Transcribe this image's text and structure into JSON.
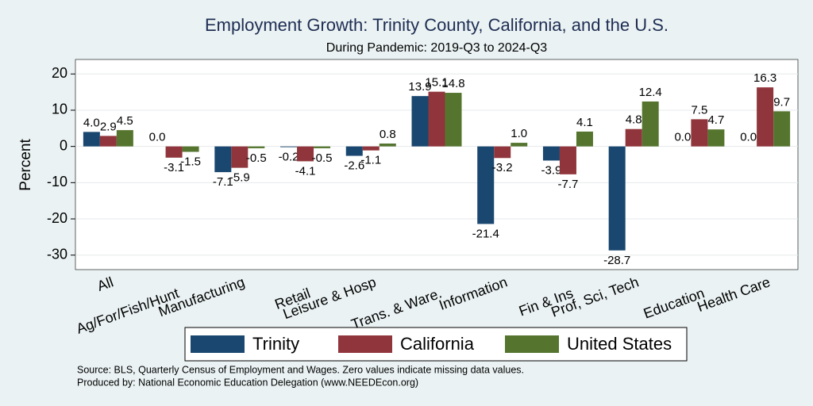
{
  "chart_data": {
    "type": "bar",
    "title": "Employment Growth: Trinity County, California, and the U.S.",
    "subtitle": "During Pandemic: 2019-Q3 to 2024-Q3",
    "y_label": "Percent",
    "categories": [
      "All",
      "Ag/For/Fish/Hunt",
      "Manufacturing",
      "Retail",
      "Leisure & Hosp",
      "Trans. & Ware.",
      "Information",
      "Fin & Ins",
      "Prof, Sci, Tech",
      "Education",
      "Health Care"
    ],
    "series": [
      {
        "name": "Trinity",
        "color": "#1a476f",
        "values": [
          4.0,
          0.0,
          -7.1,
          -0.2,
          -2.6,
          13.9,
          -21.4,
          -3.9,
          -28.7,
          0.0,
          0.0
        ],
        "value_labels": [
          "4.0",
          "0.0",
          "-7.1",
          "-0.2",
          "-2.6",
          "13.9",
          "-21.4",
          "-3.9",
          "-28.7",
          "0.0",
          "0.0"
        ]
      },
      {
        "name": "California",
        "color": "#90353b",
        "values": [
          2.9,
          -3.1,
          -5.9,
          -4.1,
          -1.1,
          15.1,
          -3.2,
          -7.7,
          4.8,
          7.5,
          16.3
        ],
        "value_labels": [
          "2.9",
          "-3.1",
          "-5.9",
          "-4.1",
          "-1.1",
          "15.1",
          "-3.2",
          "-7.7",
          "4.8",
          "7.5",
          "16.3"
        ]
      },
      {
        "name": "United States",
        "color": "#55752f",
        "values": [
          4.5,
          -1.5,
          -0.5,
          -0.5,
          0.8,
          14.8,
          1.0,
          4.1,
          12.4,
          4.7,
          9.7
        ],
        "value_labels": [
          "4.5",
          "-1.5",
          "-0.5",
          "-0.5",
          "0.8",
          "14.8",
          "1.0",
          "4.1",
          "12.4",
          "4.7",
          "9.7"
        ]
      }
    ],
    "ylim": [
      -34,
      24
    ],
    "yticks": [
      20,
      10,
      0,
      -10,
      -20,
      -30
    ],
    "grid": true,
    "notes": [
      "Source: BLS, Quarterly Census of Employment and Wages. Zero values indicate missing data values.",
      "Produced by: National Economic Education Delegation (www.NEEDEcon.org)"
    ]
  }
}
